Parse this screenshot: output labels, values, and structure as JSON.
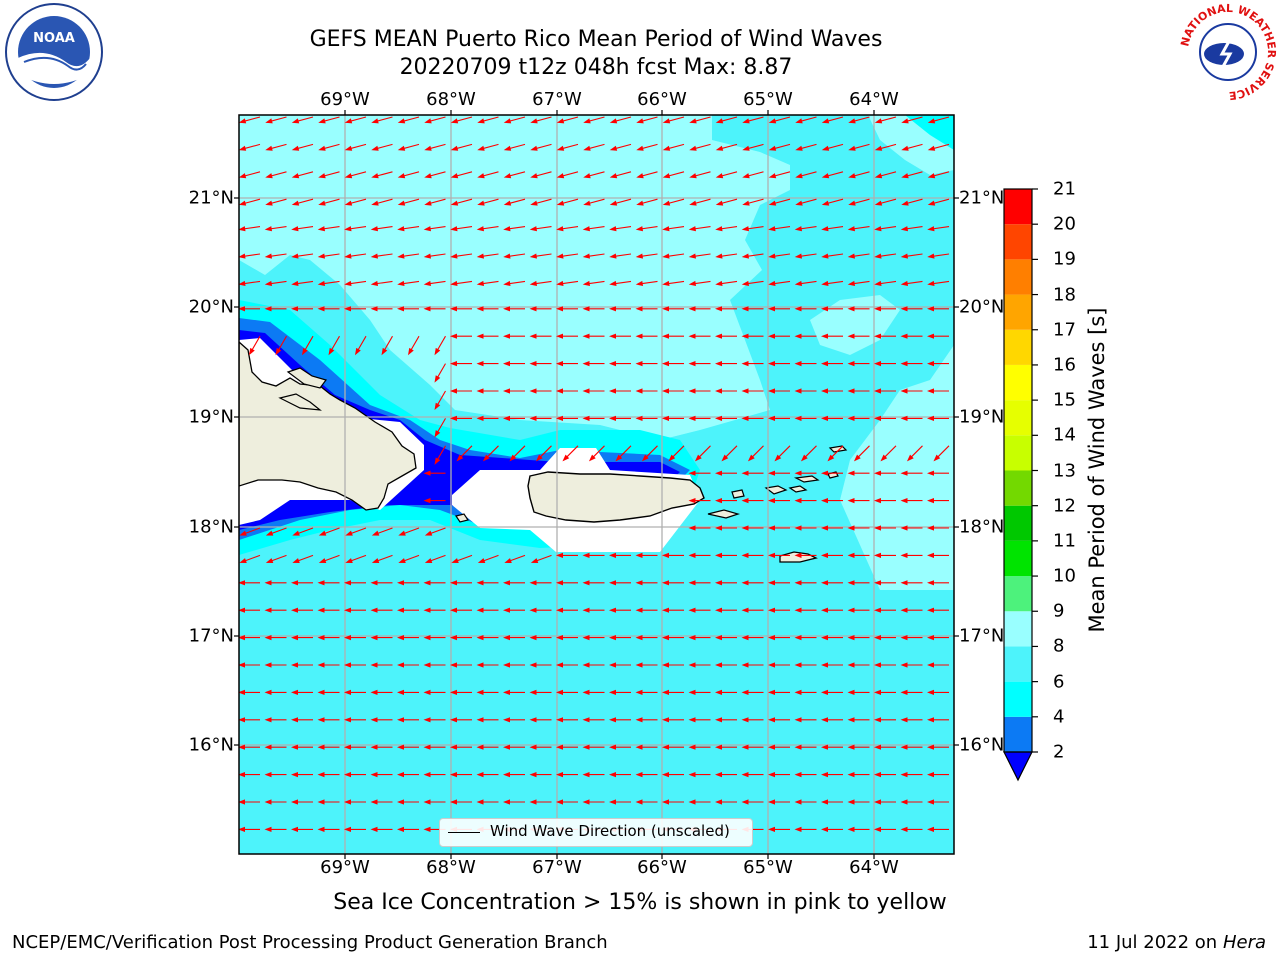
{
  "title": {
    "line1": "GEFS MEAN Puerto Rico Mean Period of Wind Waves",
    "line2": "20220709 t12z 048h fcst   Max: 8.87"
  },
  "map": {
    "lon_ticks": [
      "69°W",
      "68°W",
      "67°W",
      "66°W",
      "65°W",
      "64°W"
    ],
    "lat_ticks": [
      "21°N",
      "20°N",
      "19°N",
      "18°N",
      "17°N",
      "16°N"
    ],
    "legend_label": "Wind Wave Direction (unscaled)",
    "arrow_color": "#ff0000",
    "land_color": "#eeeedd",
    "gridline_color": "#b0b0b0"
  },
  "colorbar": {
    "label": "Mean Period of Wind Waves [s]",
    "ticks": [
      "2",
      "4",
      "6",
      "8",
      "9",
      "10",
      "11",
      "12",
      "13",
      "14",
      "15",
      "16",
      "17",
      "18",
      "19",
      "20",
      "21"
    ],
    "colors": [
      "#0000ff",
      "#0c7af4",
      "#00ffff",
      "#4df3fb",
      "#99ffff",
      "#4df27c",
      "#00e400",
      "#00c800",
      "#73d900",
      "#c8ff00",
      "#e6ff00",
      "#ffff00",
      "#ffd700",
      "#ffa500",
      "#ff7f00",
      "#ff4500",
      "#ff0000"
    ],
    "under_color": "#0000ff"
  },
  "note": "Sea Ice Concentration > 15% is shown in pink to yellow",
  "footer": {
    "left": "NCEP/EMC/Verification Post Processing Product Generation Branch",
    "right_prefix": "11 Jul 2022 on ",
    "right_host": "Hera"
  },
  "logos": {
    "left": "NOAA",
    "right": "NATIONAL WEATHER SERVICE"
  }
}
